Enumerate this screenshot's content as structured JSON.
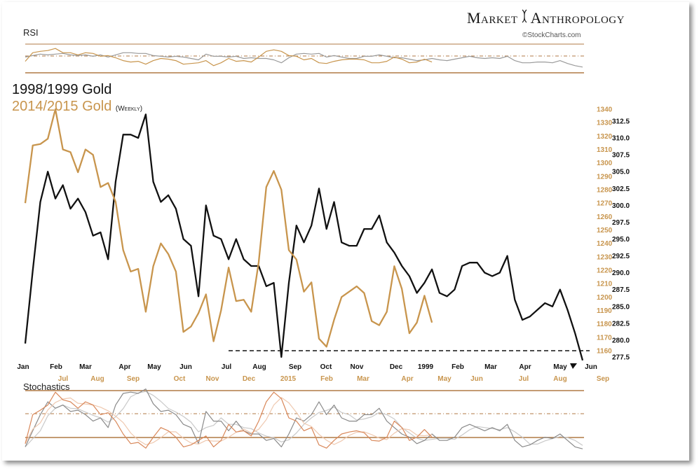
{
  "header": {
    "brand_left": "Market",
    "brand_right": "Anthropology",
    "copyright": "©StockCharts.com",
    "rsi_label": "RSI",
    "stoch_label": "Stochastics",
    "title_black": "1998/1999 Gold",
    "title_gold": "2014/2015 Gold",
    "title_gold_sub": "(Weekly)"
  },
  "colors": {
    "black_series": "#111111",
    "gold_series": "#c8954d",
    "grid_line": "#b07a45"
  },
  "chart_data": {
    "type": "line",
    "title": "1998/1999 Gold vs 2014/2015 Gold (Weekly)",
    "x_labels_black": [
      "Jan",
      "Feb",
      "Mar",
      "Apr",
      "May",
      "Jun",
      "Jul",
      "Aug",
      "Sep",
      "Oct",
      "Nov",
      "Dec",
      "1999",
      "Feb",
      "Mar",
      "Apr",
      "May",
      "Jun"
    ],
    "x_labels_gold": [
      "Jul",
      "Aug",
      "Sep",
      "Oct",
      "Nov",
      "Dec",
      "2015",
      "Feb",
      "Mar",
      "Apr",
      "May",
      "Jun",
      "Jul",
      "Aug",
      "Sep"
    ],
    "y_right_inner": {
      "label_values": [
        "312.5",
        "310.0",
        "307.5",
        "305.0",
        "302.5",
        "300.0",
        "297.5",
        "295.0",
        "292.5",
        "290.0",
        "287.5",
        "285.0",
        "282.5",
        "280.0",
        "277.5"
      ],
      "ylim": [
        277.5,
        312.5
      ]
    },
    "y_right_outer": {
      "label_values": [
        "1340",
        "1330",
        "1320",
        "1310",
        "1300",
        "1290",
        "1280",
        "1270",
        "1260",
        "1250",
        "1240",
        "1230",
        "1220",
        "1210",
        "1200",
        "1190",
        "1180",
        "1170",
        "1160"
      ],
      "ylim": [
        1160,
        1340
      ]
    },
    "series": [
      {
        "name": "1998/1999 Gold",
        "axis": "inner",
        "values": [
          279.5,
          290.3,
          300.5,
          305.0,
          301.0,
          303.0,
          299.5,
          301.0,
          299.0,
          295.5,
          296.0,
          292.0,
          303.5,
          310.5,
          310.5,
          310.0,
          313.5,
          303.5,
          300.5,
          301.5,
          299.5,
          295.0,
          294.0,
          286.5,
          300.0,
          295.5,
          295.0,
          292.0,
          295.0,
          292.0,
          291.0,
          291.0,
          288.0,
          288.5,
          277.5,
          288.5,
          297.0,
          294.5,
          297.0,
          302.5,
          296.5,
          300.5,
          294.5,
          294.0,
          294.0,
          296.5,
          296.5,
          298.5,
          294.5,
          293.0,
          291.0,
          289.5,
          287.0,
          288.5,
          290.5,
          287.0,
          286.5,
          287.5,
          291.0,
          291.5,
          291.5,
          290.0,
          289.5,
          290.0,
          292.5,
          286.0,
          283.0,
          283.5,
          284.5,
          285.5,
          285.0,
          287.5,
          284.5,
          281.0,
          277.0
        ]
      },
      {
        "name": "2014/2015 Gold",
        "axis": "outer",
        "values": [
          1270,
          1313,
          1314,
          1318,
          1340,
          1310,
          1308,
          1293,
          1310,
          1306,
          1282,
          1285,
          1271,
          1235,
          1219,
          1221,
          1189,
          1223,
          1240,
          1232,
          1219,
          1174,
          1178,
          1188,
          1202,
          1167,
          1190,
          1222,
          1197,
          1198,
          1189,
          1226,
          1282,
          1294,
          1280,
          1235,
          1228,
          1204,
          1211,
          1169,
          1163,
          1183,
          1200,
          1204,
          1208,
          1203,
          1182,
          1179,
          1189,
          1223,
          1206,
          1173,
          1181,
          1201,
          1181
        ]
      }
    ],
    "rsi": {
      "series": [
        {
          "name": "1998/1999 Gold",
          "values": [
            52,
            54,
            56,
            55,
            56,
            57,
            55,
            54,
            55,
            53,
            55,
            52,
            55,
            58,
            58,
            57,
            57,
            54,
            53,
            52,
            53,
            52,
            50,
            48,
            56,
            53,
            53,
            52,
            53,
            50,
            51,
            50,
            50,
            48,
            44,
            51,
            56,
            57,
            56,
            57,
            52,
            54,
            52,
            50,
            50,
            53,
            53,
            55,
            53,
            51,
            51,
            49,
            47,
            48,
            50,
            48,
            47,
            49,
            51,
            53,
            51,
            50,
            51,
            50,
            53,
            47,
            44,
            44,
            45,
            45,
            44,
            47,
            43,
            40,
            38
          ]
        },
        {
          "name": "2014/2015 Gold",
          "values": [
            46,
            58,
            60,
            61,
            64,
            58,
            58,
            55,
            58,
            57,
            53,
            54,
            51,
            47,
            45,
            46,
            42,
            47,
            50,
            49,
            47,
            42,
            43,
            44,
            47,
            40,
            44,
            50,
            46,
            47,
            45,
            52,
            60,
            62,
            60,
            54,
            53,
            48,
            50,
            44,
            43,
            46,
            48,
            49,
            49,
            48,
            44,
            44,
            46,
            52,
            49,
            44,
            45,
            49,
            45
          ]
        }
      ],
      "ylim": [
        30,
        70
      ]
    },
    "stochastics": {
      "series": [
        {
          "name": "1998/1999 Gold %K",
          "values": [
            5,
            30,
            55,
            75,
            65,
            70,
            60,
            62,
            55,
            45,
            50,
            35,
            70,
            88,
            90,
            88,
            95,
            72,
            60,
            62,
            55,
            40,
            35,
            10,
            60,
            45,
            45,
            30,
            45,
            30,
            25,
            25,
            15,
            18,
            5,
            25,
            50,
            45,
            55,
            75,
            55,
            70,
            50,
            45,
            45,
            55,
            55,
            65,
            45,
            35,
            25,
            20,
            10,
            15,
            25,
            15,
            15,
            20,
            35,
            40,
            35,
            30,
            35,
            30,
            40,
            15,
            5,
            8,
            15,
            20,
            18,
            25,
            15,
            5,
            2
          ]
        },
        {
          "name": "2014/2015 Gold %K",
          "values": [
            10,
            55,
            62,
            70,
            90,
            78,
            75,
            65,
            75,
            70,
            55,
            58,
            45,
            25,
            10,
            12,
            3,
            20,
            35,
            30,
            20,
            5,
            8,
            15,
            22,
            5,
            15,
            40,
            28,
            30,
            22,
            45,
            75,
            90,
            80,
            50,
            45,
            30,
            35,
            8,
            3,
            15,
            25,
            28,
            30,
            27,
            15,
            14,
            20,
            45,
            35,
            15,
            20,
            32,
            20
          ]
        }
      ],
      "ylim": [
        0,
        100
      ]
    },
    "grid": false,
    "legend": "top-left"
  }
}
